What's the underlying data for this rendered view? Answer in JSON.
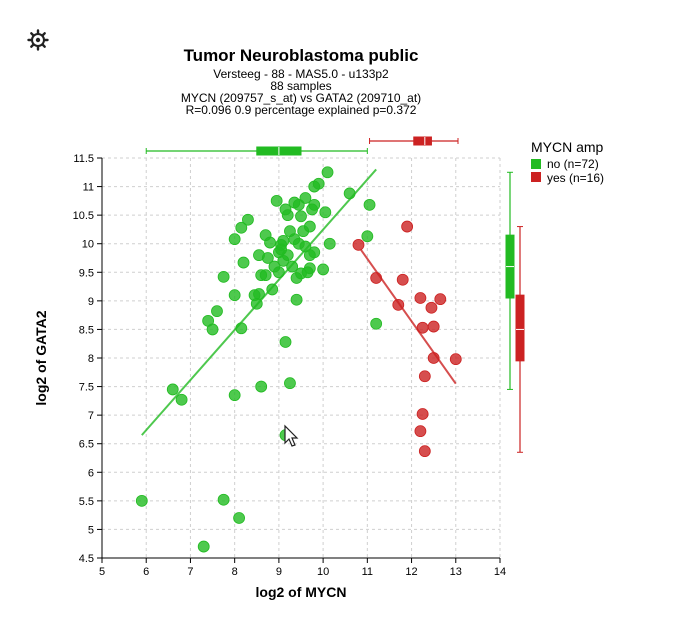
{
  "toolbar": {
    "settings_icon": "gear-icon"
  },
  "chart_data": {
    "type": "scatter",
    "title": "Tumor Neuroblastoma public",
    "subtitle_lines": [
      "Versteeg - 88 - MAS5.0 - u133p2",
      "88 samples",
      "MYCN (209757_s_at) vs GATA2 (209710_at)",
      "R=0.096 0.9 percentage explained p=0.372"
    ],
    "xlabel": "log2 of MYCN",
    "ylabel": "log2 of GATA2",
    "xlim": [
      5,
      14
    ],
    "ylim": [
      4.5,
      11.5
    ],
    "x_ticks": [
      "5",
      "6",
      "7",
      "8",
      "9",
      "10",
      "11",
      "12",
      "13",
      "14"
    ],
    "y_ticks": [
      "4.5",
      "5",
      "5.5",
      "6",
      "6.5",
      "7",
      "7.5",
      "8",
      "8.5",
      "9",
      "9.5",
      "10",
      "10.5",
      "11",
      "11.5"
    ],
    "grid": true,
    "legend": {
      "title": "MYCN amp",
      "position": "right",
      "entries": [
        {
          "label": "no (n=72)",
          "color": "#22bb22"
        },
        {
          "label": "yes (n=16)",
          "color": "#cc2222"
        }
      ]
    },
    "series": [
      {
        "name": "no (n=72)",
        "color": "#22bb22",
        "trend": {
          "x": [
            5.9,
            11.2
          ],
          "y": [
            6.65,
            11.3
          ]
        },
        "points": [
          [
            5.9,
            5.5
          ],
          [
            6.6,
            7.45
          ],
          [
            6.8,
            7.27
          ],
          [
            7.3,
            4.7
          ],
          [
            7.4,
            8.65
          ],
          [
            7.5,
            8.5
          ],
          [
            7.6,
            8.82
          ],
          [
            7.75,
            5.52
          ],
          [
            7.75,
            9.42
          ],
          [
            8.0,
            9.1
          ],
          [
            8.0,
            10.08
          ],
          [
            8.0,
            7.35
          ],
          [
            8.1,
            5.2
          ],
          [
            8.15,
            8.52
          ],
          [
            8.15,
            10.28
          ],
          [
            8.2,
            9.67
          ],
          [
            8.3,
            10.42
          ],
          [
            8.5,
            8.95
          ],
          [
            8.55,
            9.12
          ],
          [
            8.55,
            9.8
          ],
          [
            8.6,
            9.45
          ],
          [
            8.6,
            7.5
          ],
          [
            8.7,
            9.45
          ],
          [
            8.75,
            9.75
          ],
          [
            8.8,
            10.02
          ],
          [
            8.85,
            9.2
          ],
          [
            8.9,
            9.6
          ],
          [
            8.95,
            10.75
          ],
          [
            9.0,
            9.85
          ],
          [
            9.0,
            9.5
          ],
          [
            9.05,
            9.98
          ],
          [
            9.1,
            9.7
          ],
          [
            9.1,
            10.05
          ],
          [
            9.15,
            8.28
          ],
          [
            9.2,
            10.5
          ],
          [
            9.2,
            9.8
          ],
          [
            9.25,
            10.22
          ],
          [
            9.25,
            7.56
          ],
          [
            9.3,
            9.6
          ],
          [
            9.35,
            10.08
          ],
          [
            9.35,
            10.72
          ],
          [
            9.4,
            9.4
          ],
          [
            9.4,
            9.02
          ],
          [
            9.45,
            10.0
          ],
          [
            9.5,
            9.48
          ],
          [
            9.5,
            10.48
          ],
          [
            9.55,
            10.22
          ],
          [
            9.6,
            10.8
          ],
          [
            9.6,
            9.95
          ],
          [
            9.65,
            9.5
          ],
          [
            9.7,
            9.8
          ],
          [
            9.7,
            9.57
          ],
          [
            9.75,
            10.6
          ],
          [
            9.8,
            9.85
          ],
          [
            9.8,
            11.0
          ],
          [
            9.9,
            11.05
          ],
          [
            10.0,
            9.55
          ],
          [
            10.05,
            10.55
          ],
          [
            10.1,
            11.25
          ],
          [
            10.15,
            10.0
          ],
          [
            10.6,
            10.88
          ],
          [
            11.0,
            10.13
          ],
          [
            11.05,
            10.68
          ],
          [
            11.2,
            8.6
          ],
          [
            9.15,
            6.65
          ],
          [
            9.7,
            10.3
          ],
          [
            8.7,
            10.15
          ],
          [
            9.15,
            10.6
          ],
          [
            9.45,
            10.68
          ],
          [
            9.8,
            10.68
          ],
          [
            8.45,
            9.1
          ],
          [
            9.05,
            9.9
          ]
        ]
      },
      {
        "name": "yes (n=16)",
        "color": "#cc2222",
        "trend": {
          "x": [
            10.85,
            13.0
          ],
          "y": [
            9.9,
            7.55
          ]
        },
        "points": [
          [
            10.8,
            9.98
          ],
          [
            11.2,
            9.4
          ],
          [
            11.7,
            8.93
          ],
          [
            11.8,
            9.37
          ],
          [
            11.9,
            10.3
          ],
          [
            12.2,
            9.05
          ],
          [
            12.2,
            6.72
          ],
          [
            12.25,
            8.53
          ],
          [
            12.25,
            7.02
          ],
          [
            12.3,
            7.68
          ],
          [
            12.3,
            6.37
          ],
          [
            12.45,
            8.88
          ],
          [
            12.5,
            8.55
          ],
          [
            12.5,
            8.0
          ],
          [
            12.65,
            9.03
          ],
          [
            13.0,
            7.98
          ]
        ]
      }
    ],
    "boxplots_x": [
      {
        "series": "no (n=72)",
        "min": 6.0,
        "q1": 8.5,
        "median": 9.0,
        "q3": 9.5,
        "max": 11.0
      },
      {
        "series": "yes (n=16)",
        "min": 11.05,
        "q1": 12.05,
        "median": 12.3,
        "q3": 12.45,
        "max": 13.05
      }
    ],
    "boxplots_y": [
      {
        "series": "no (n=72)",
        "min": 7.45,
        "q1": 9.05,
        "median": 9.6,
        "q3": 10.15,
        "max": 11.25
      },
      {
        "series": "yes (n=16)",
        "min": 6.35,
        "q1": 7.95,
        "median": 8.5,
        "q3": 9.1,
        "max": 10.3
      }
    ]
  }
}
